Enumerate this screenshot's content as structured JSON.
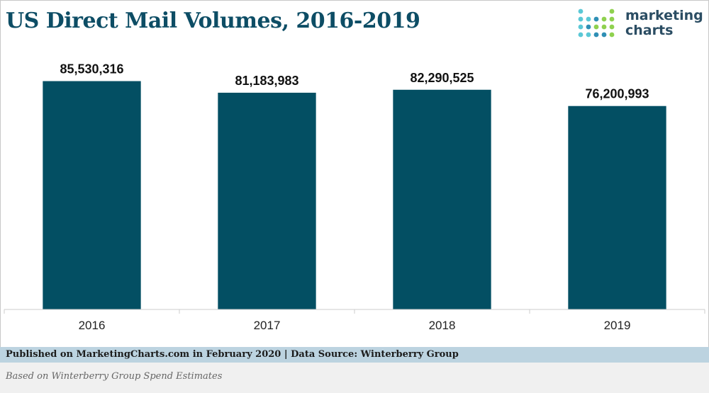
{
  "header": {
    "title": "US Direct Mail Volumes, 2016-2019"
  },
  "logo": {
    "line1": "marketing",
    "line2": "charts",
    "dot_colors": [
      "#5bc8d6",
      "#8fd14f",
      "#2f8fb5"
    ]
  },
  "footer": {
    "source": "Published on MarketingCharts.com in February 2020 | Data Source: Winterberry Group",
    "note": "Based on Winterberry Group Spend Estimates"
  },
  "chart_data": {
    "type": "bar",
    "categories": [
      "2016",
      "2017",
      "2018",
      "2019"
    ],
    "values": [
      85530316,
      81183983,
      82290525,
      76200993
    ],
    "value_labels": [
      "85,530,316",
      "81,183,983",
      "82,290,525",
      "76,200,993"
    ],
    "ylim": [
      0,
      100000000
    ],
    "grid": false,
    "bar_color": "#034f63"
  }
}
